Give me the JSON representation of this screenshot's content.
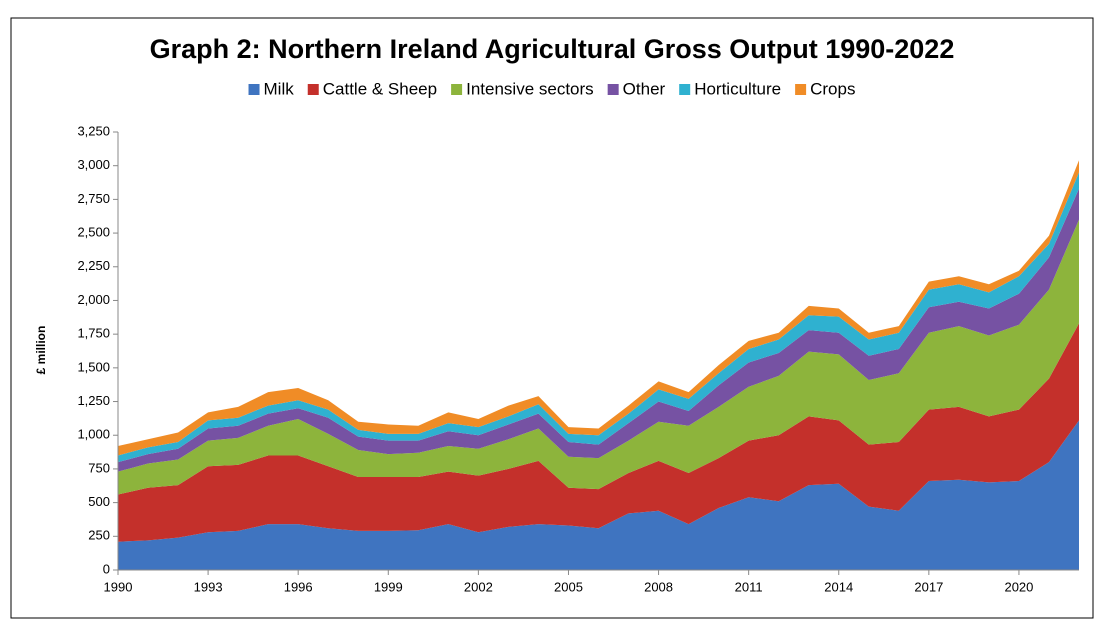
{
  "chart_data": {
    "type": "stacked_area",
    "title": "Graph 2: Northern Ireland Agricultural Gross Output 1990-2022",
    "y_label": "£ million",
    "x": [
      1990,
      1991,
      1992,
      1993,
      1994,
      1995,
      1996,
      1997,
      1998,
      1999,
      2000,
      2001,
      2002,
      2003,
      2004,
      2005,
      2006,
      2007,
      2008,
      2009,
      2010,
      2011,
      2012,
      2013,
      2014,
      2015,
      2016,
      2017,
      2018,
      2019,
      2020,
      2021,
      2022
    ],
    "xlim": [
      1990,
      2022
    ],
    "xticks": [
      1990,
      1993,
      1996,
      1999,
      2002,
      2005,
      2008,
      2011,
      2014,
      2017,
      2020
    ],
    "ylim": [
      0,
      3250
    ],
    "yticks": [
      0,
      250,
      500,
      750,
      {
        "value": 1000,
        "label": "1,000"
      },
      {
        "value": 1250,
        "label": "1,250"
      },
      {
        "value": 1500,
        "label": "1,500"
      },
      {
        "value": 1750,
        "label": "1,750"
      },
      {
        "value": 2000,
        "label": "2,000"
      },
      {
        "value": 2250,
        "label": "2,250"
      },
      {
        "value": 2500,
        "label": "2,500"
      },
      {
        "value": 2750,
        "label": "2,750"
      },
      {
        "value": 3000,
        "label": "3,000"
      },
      {
        "value": 3250,
        "label": "3,250"
      }
    ],
    "legend": "top",
    "series": [
      {
        "name": "Milk",
        "color": "#3f74c0",
        "values": [
          210,
          220,
          240,
          280,
          290,
          340,
          340,
          310,
          290,
          290,
          295,
          340,
          280,
          320,
          340,
          330,
          310,
          420,
          440,
          340,
          460,
          540,
          510,
          630,
          640,
          470,
          440,
          660,
          670,
          650,
          660,
          800,
          1110
        ]
      },
      {
        "name": "Cattle & Sheep",
        "color": "#c4302b",
        "values": [
          350,
          390,
          390,
          490,
          490,
          510,
          510,
          460,
          400,
          400,
          395,
          390,
          420,
          430,
          470,
          280,
          290,
          300,
          370,
          380,
          370,
          420,
          490,
          510,
          470,
          460,
          510,
          530,
          540,
          490,
          530,
          620,
          720
        ]
      },
      {
        "name": "Intensive sectors",
        "color": "#8db43c",
        "values": [
          170,
          180,
          190,
          190,
          200,
          220,
          270,
          240,
          200,
          170,
          180,
          190,
          200,
          220,
          240,
          230,
          230,
          240,
          290,
          350,
          380,
          400,
          440,
          480,
          490,
          480,
          510,
          570,
          600,
          600,
          630,
          660,
          770
        ]
      },
      {
        "name": "Other",
        "color": "#7652a3",
        "values": [
          70,
          70,
          80,
          90,
          90,
          90,
          80,
          120,
          100,
          100,
          90,
          110,
          100,
          110,
          110,
          110,
          100,
          130,
          150,
          110,
          160,
          180,
          170,
          160,
          160,
          180,
          180,
          190,
          180,
          200,
          230,
          240,
          230
        ]
      },
      {
        "name": "Horticulture",
        "color": "#2fb1d0",
        "values": [
          50,
          50,
          50,
          60,
          60,
          60,
          60,
          60,
          50,
          50,
          50,
          60,
          60,
          60,
          70,
          60,
          70,
          70,
          90,
          90,
          90,
          100,
          100,
          110,
          120,
          120,
          120,
          130,
          130,
          120,
          130,
          100,
          120
        ]
      },
      {
        "name": "Crops",
        "color": "#f08c26",
        "values": [
          70,
          60,
          70,
          60,
          80,
          100,
          90,
          70,
          60,
          70,
          60,
          80,
          60,
          80,
          60,
          50,
          50,
          60,
          60,
          50,
          60,
          60,
          50,
          70,
          60,
          50,
          50,
          60,
          60,
          60,
          40,
          60,
          90
        ]
      }
    ]
  }
}
